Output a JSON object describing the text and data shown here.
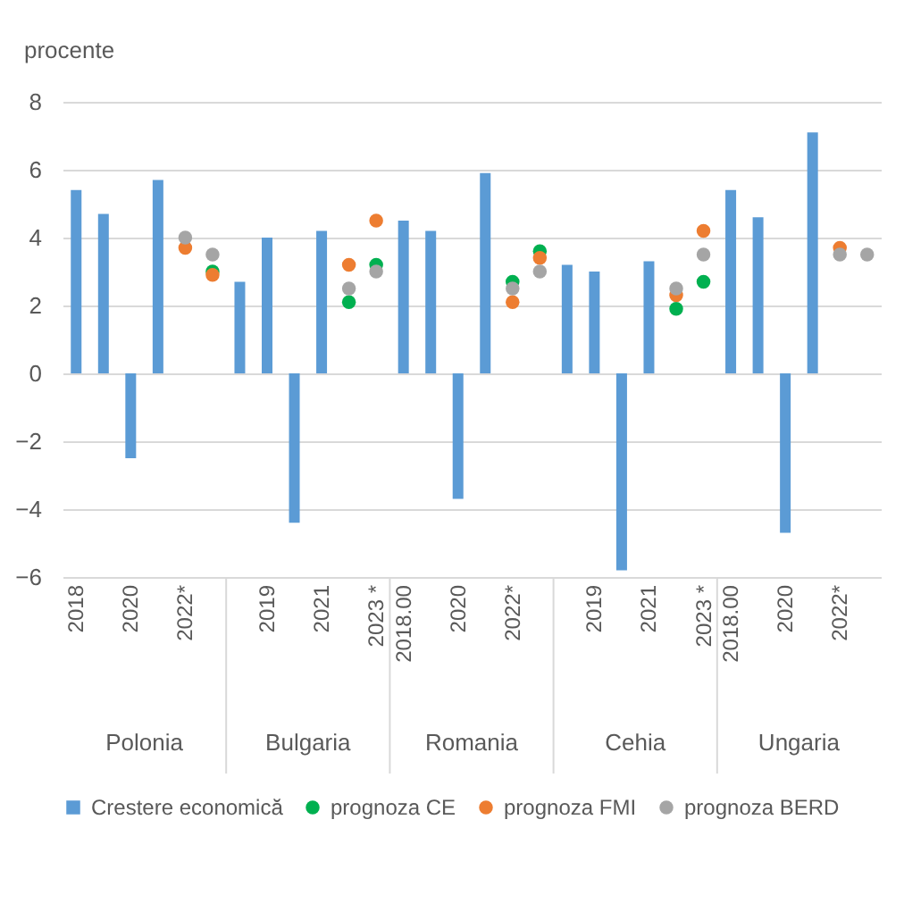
{
  "chart_data": {
    "type": "bar",
    "ylabel": "procente",
    "categories": [
      "2018",
      null,
      "2020",
      null,
      "2022*",
      null,
      null,
      "2019",
      null,
      "2021",
      null,
      "2023 *",
      "2018.00",
      null,
      "2020",
      null,
      "2022*",
      null,
      null,
      "2019",
      null,
      "2021",
      null,
      "2023 *",
      "2018.00",
      null,
      "2020",
      null,
      "2022*",
      null
    ],
    "series": [
      {
        "name": "Crestere economică",
        "type": "bar",
        "color": "#5b9bd5",
        "values": [
          5.4,
          4.7,
          -2.5,
          5.7,
          null,
          null,
          2.7,
          4.0,
          -4.4,
          4.2,
          null,
          null,
          4.5,
          4.2,
          -3.7,
          5.9,
          null,
          null,
          3.2,
          3.0,
          -5.8,
          3.3,
          null,
          null,
          5.4,
          4.6,
          -4.7,
          7.1,
          null,
          null
        ]
      },
      {
        "name": "prognoza CE",
        "type": "scatter",
        "color": "#00b050",
        "values": [
          null,
          null,
          null,
          null,
          null,
          3.0,
          null,
          null,
          null,
          null,
          2.1,
          3.2,
          null,
          null,
          null,
          null,
          2.7,
          3.6,
          null,
          null,
          null,
          null,
          1.9,
          2.7,
          null,
          null,
          null,
          null,
          null,
          null
        ]
      },
      {
        "name": "prognoza FMI",
        "type": "scatter",
        "color": "#ed7d31",
        "values": [
          null,
          null,
          null,
          null,
          3.7,
          2.9,
          null,
          null,
          null,
          null,
          3.2,
          4.5,
          null,
          null,
          null,
          null,
          2.1,
          3.4,
          null,
          null,
          null,
          null,
          2.3,
          4.2,
          null,
          null,
          null,
          null,
          3.7,
          null
        ]
      },
      {
        "name": "prognoza BERD",
        "type": "scatter",
        "color": "#a5a5a5",
        "values": [
          null,
          null,
          null,
          null,
          4.0,
          3.5,
          null,
          null,
          null,
          null,
          2.5,
          3.0,
          null,
          null,
          null,
          null,
          2.5,
          3.0,
          null,
          null,
          null,
          null,
          2.5,
          3.5,
          null,
          null,
          null,
          null,
          3.5,
          3.5
        ]
      }
    ],
    "annotations": [
      "Polonia",
      "Bulgaria",
      "Romania",
      "Cehia",
      "Ungaria"
    ],
    "ylim": [
      -6,
      8
    ],
    "yticks": [
      -6,
      -4,
      -2,
      0,
      2,
      4,
      6,
      8
    ],
    "grid": "y",
    "legend": "bottom",
    "marker": "circle"
  }
}
